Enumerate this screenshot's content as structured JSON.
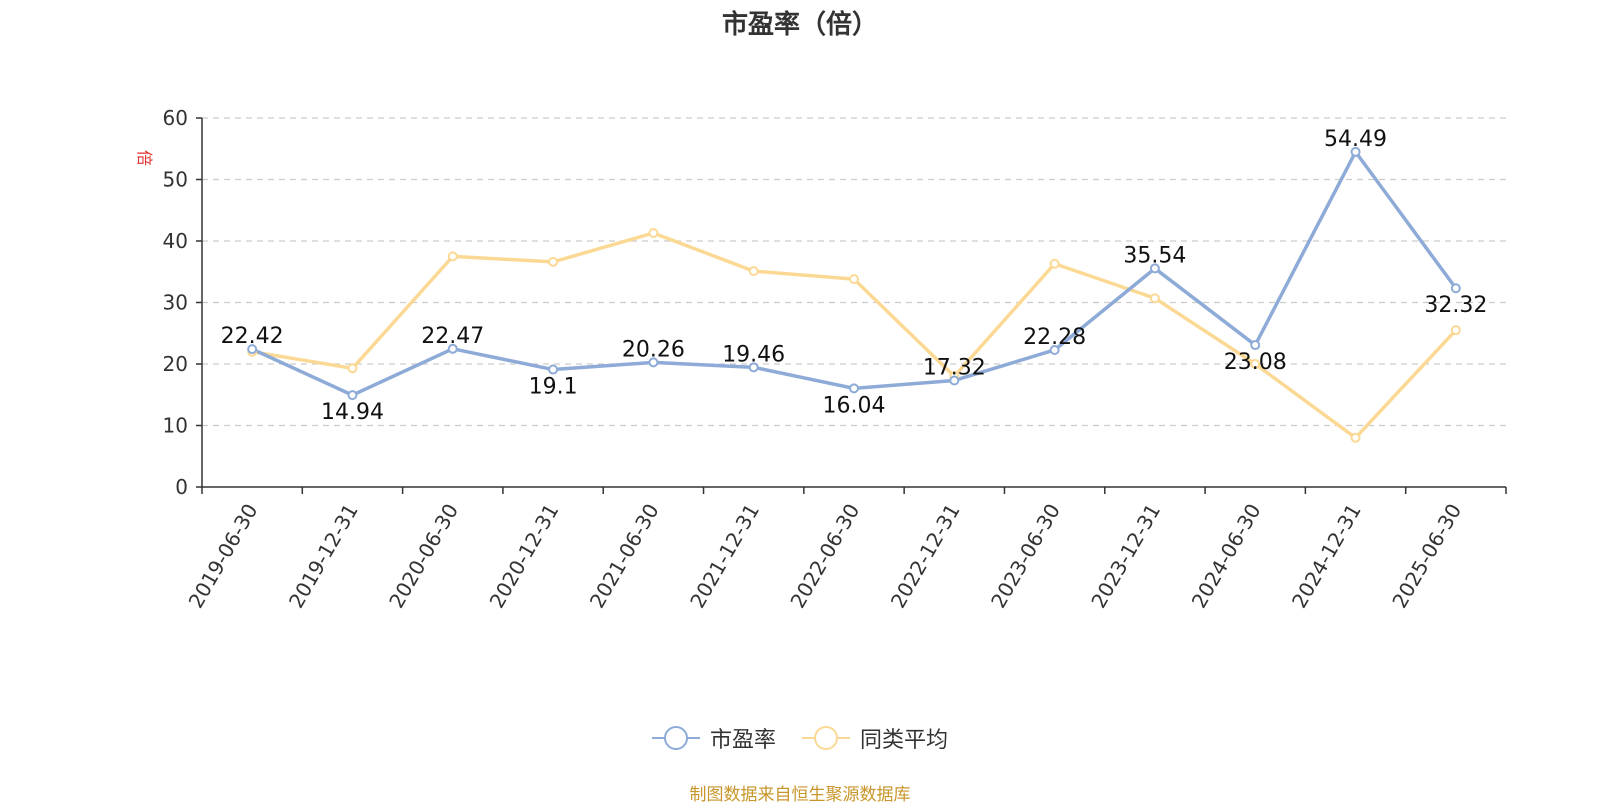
{
  "chart_data": {
    "type": "line",
    "title": "市盈率（倍）",
    "ylabel": "倍",
    "ylim": [
      0,
      60
    ],
    "yticks": [
      0,
      10,
      20,
      30,
      40,
      50,
      60
    ],
    "grid": "horizontal dashed",
    "legend_position": "bottom-center",
    "categories": [
      "2019-06-30",
      "2019-12-31",
      "2020-06-30",
      "2020-12-31",
      "2021-06-30",
      "2021-12-31",
      "2022-06-30",
      "2022-12-31",
      "2023-06-30",
      "2023-12-31",
      "2024-06-30",
      "2024-12-31",
      "2025-06-30"
    ],
    "series": [
      {
        "name": "市盈率",
        "color": "#8eabd8",
        "show_labels": true,
        "values": [
          22.42,
          14.94,
          22.47,
          19.1,
          20.26,
          19.46,
          16.04,
          17.32,
          22.28,
          35.54,
          23.08,
          54.49,
          32.32
        ]
      },
      {
        "name": "同类平均",
        "color": "#fbd994",
        "show_labels": false,
        "values": [
          22.0,
          19.3,
          37.5,
          36.6,
          41.3,
          35.1,
          33.8,
          18.0,
          36.3,
          30.7,
          20.0,
          8.0,
          25.5
        ]
      }
    ]
  },
  "source_note": "制图数据来自恒生聚源数据库"
}
